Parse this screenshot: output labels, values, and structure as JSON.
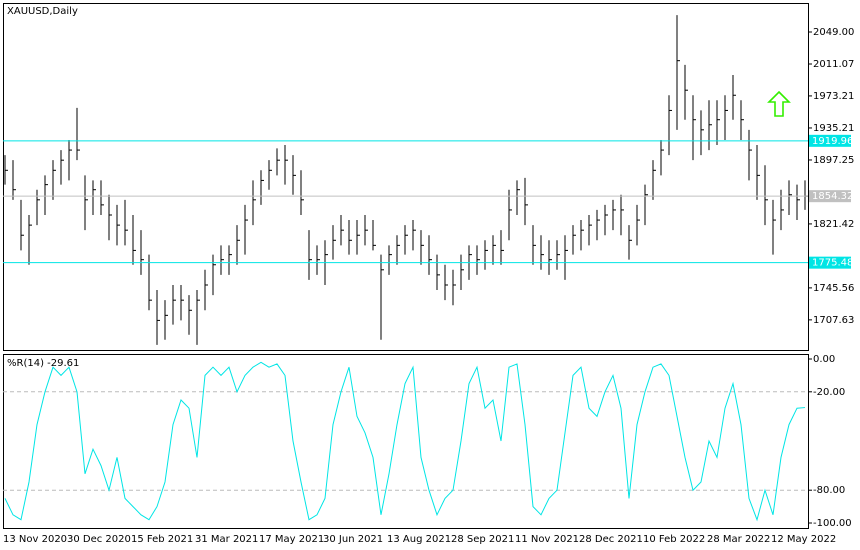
{
  "chart_data": [
    {
      "type": "ohlc",
      "title": "XAUUSD,Daily",
      "categories": [
        "13 Nov 2020",
        null,
        null,
        null,
        null,
        null,
        null,
        null,
        "30 Dec 2020",
        null,
        null,
        null,
        null,
        null,
        null,
        null,
        "15 Feb 2021",
        null,
        null,
        null,
        null,
        null,
        null,
        null,
        "31 Mar 2021",
        null,
        null,
        null,
        null,
        null,
        null,
        null,
        "17 May 2021",
        null,
        null,
        null,
        null,
        null,
        null,
        null,
        "30 Jun 2021",
        null,
        null,
        null,
        null,
        null,
        null,
        null,
        "13 Aug 2021",
        null,
        null,
        null,
        null,
        null,
        null,
        null,
        "28 Sep 2021",
        null,
        null,
        null,
        null,
        null,
        null,
        null,
        "11 Nov 2021",
        null,
        null,
        null,
        null,
        null,
        null,
        null,
        "28 Dec 2021",
        null,
        null,
        null,
        null,
        null,
        null,
        null,
        "10 Feb 2022",
        null,
        null,
        null,
        null,
        null,
        null,
        null,
        "28 Mar 2022",
        null,
        null,
        null,
        null,
        null,
        null,
        null,
        "12 May 2022",
        null,
        null,
        null,
        null
      ],
      "high": [
        1903,
        1897,
        1850,
        1832,
        1862,
        1879,
        1897,
        1909,
        1921,
        1959,
        1879,
        1873,
        1873,
        1856,
        1844,
        1850,
        1832,
        1814,
        1785,
        1743,
        1731,
        1749,
        1749,
        1737,
        1743,
        1767,
        1785,
        1796,
        1796,
        1820,
        1844,
        1873,
        1885,
        1897,
        1911,
        1915,
        1903,
        1885,
        1814,
        1796,
        1802,
        1820,
        1832,
        1826,
        1826,
        1832,
        1826,
        1785,
        1796,
        1808,
        1820,
        1826,
        1814,
        1808,
        1785,
        1773,
        1767,
        1785,
        1796,
        1796,
        1802,
        1808,
        1814,
        1862,
        1873,
        1876,
        1820,
        1808,
        1802,
        1802,
        1808,
        1820,
        1826,
        1832,
        1838,
        1844,
        1850,
        1856,
        1820,
        1844,
        1868,
        1897,
        1921,
        1974,
        2069,
        2010,
        1974,
        1956,
        1968,
        1968,
        1974,
        1998,
        1968,
        1933,
        1915,
        1891,
        1850,
        1862,
        1873,
        1868,
        1873
      ],
      "low": [
        1868,
        1850,
        1790,
        1773,
        1820,
        1832,
        1850,
        1868,
        1873,
        1897,
        1814,
        1832,
        1832,
        1802,
        1796,
        1796,
        1773,
        1761,
        1719,
        1678,
        1684,
        1702,
        1707,
        1690,
        1678,
        1719,
        1737,
        1761,
        1761,
        1773,
        1785,
        1820,
        1844,
        1862,
        1879,
        1868,
        1856,
        1832,
        1755,
        1761,
        1749,
        1779,
        1796,
        1785,
        1785,
        1796,
        1790,
        1684,
        1761,
        1773,
        1785,
        1790,
        1773,
        1761,
        1743,
        1731,
        1725,
        1743,
        1755,
        1761,
        1767,
        1773,
        1773,
        1802,
        1832,
        1820,
        1773,
        1767,
        1761,
        1767,
        1755,
        1785,
        1790,
        1796,
        1802,
        1808,
        1814,
        1808,
        1779,
        1796,
        1820,
        1850,
        1879,
        1903,
        1933,
        1945,
        1897,
        1903,
        1909,
        1915,
        1921,
        1945,
        1921,
        1873,
        1850,
        1820,
        1785,
        1814,
        1832,
        1826,
        1838
      ],
      "close": [
        1885,
        1862,
        1808,
        1820,
        1850,
        1868,
        1885,
        1897,
        1909,
        1909,
        1850,
        1862,
        1844,
        1832,
        1820,
        1814,
        1790,
        1779,
        1731,
        1707,
        1713,
        1731,
        1731,
        1719,
        1731,
        1749,
        1773,
        1779,
        1785,
        1802,
        1826,
        1850,
        1873,
        1885,
        1897,
        1897,
        1879,
        1850,
        1779,
        1779,
        1785,
        1802,
        1814,
        1802,
        1808,
        1814,
        1796,
        1767,
        1785,
        1796,
        1808,
        1814,
        1796,
        1779,
        1761,
        1749,
        1749,
        1767,
        1785,
        1779,
        1790,
        1796,
        1790,
        1838,
        1862,
        1844,
        1796,
        1785,
        1779,
        1785,
        1790,
        1808,
        1814,
        1820,
        1826,
        1832,
        1838,
        1838,
        1802,
        1826,
        1856,
        1885,
        1909,
        1956,
        2015,
        1980,
        1945,
        1933,
        1939,
        1945,
        1956,
        1974,
        1945,
        1909,
        1879,
        1850,
        1826,
        1838,
        1856,
        1850,
        1854.32
      ],
      "color": "#000000",
      "ylim": [
        1671.9,
        2083.4
      ],
      "yticks": [
        {
          "value": 2049,
          "label": "2049.00"
        },
        {
          "value": 2011.07,
          "label": "2011.07"
        },
        {
          "value": 1973.21,
          "label": "1973.21"
        },
        {
          "value": 1935.21,
          "label": "1935.21"
        },
        {
          "value": 1897.25,
          "label": "1897.25"
        },
        {
          "value": 1821.42,
          "label": "1821.42"
        },
        {
          "value": 1745.56,
          "label": "1745.56"
        },
        {
          "value": 1707.63,
          "label": "1707.63"
        }
      ],
      "hlines": [
        {
          "value": 1919.96,
          "color": "#00e5e5"
        },
        {
          "value": 1854.32,
          "color": "#c0c0c0"
        },
        {
          "value": 1775.48,
          "color": "#00e5e5"
        }
      ]
    },
    {
      "type": "line",
      "title": "%R(14) -29.61",
      "color": "#00e5e5",
      "values": [
        -85,
        -95,
        -98,
        -75,
        -40,
        -20,
        -5,
        -10,
        -5,
        -20,
        -70,
        -55,
        -65,
        -80,
        -60,
        -85,
        -90,
        -95,
        -98,
        -90,
        -75,
        -40,
        -25,
        -30,
        -60,
        -10,
        -5,
        -10,
        -5,
        -20,
        -10,
        -5,
        -2,
        -5,
        -3,
        -10,
        -50,
        -75,
        -98,
        -95,
        -85,
        -40,
        -20,
        -5,
        -35,
        -45,
        -60,
        -95,
        -70,
        -40,
        -15,
        -5,
        -60,
        -80,
        -95,
        -85,
        -80,
        -50,
        -15,
        -5,
        -30,
        -25,
        -50,
        -5,
        -3,
        -40,
        -90,
        -95,
        -85,
        -80,
        -45,
        -10,
        -5,
        -30,
        -35,
        -20,
        -10,
        -30,
        -85,
        -40,
        -20,
        -5,
        -3,
        -10,
        -35,
        -60,
        -80,
        -75,
        -50,
        -60,
        -30,
        -15,
        -40,
        -85,
        -98,
        -80,
        -95,
        -60,
        -40,
        -30,
        -29.61
      ],
      "ylim": [
        -103.05,
        3.05
      ],
      "yticks": [
        {
          "value": 0,
          "label": "0.00"
        },
        {
          "value": -20,
          "label": "-20.00"
        },
        {
          "value": -80,
          "label": "-80.00"
        },
        {
          "value": -100,
          "label": "-100.00"
        }
      ],
      "levels": [
        -20,
        -80
      ]
    }
  ]
}
